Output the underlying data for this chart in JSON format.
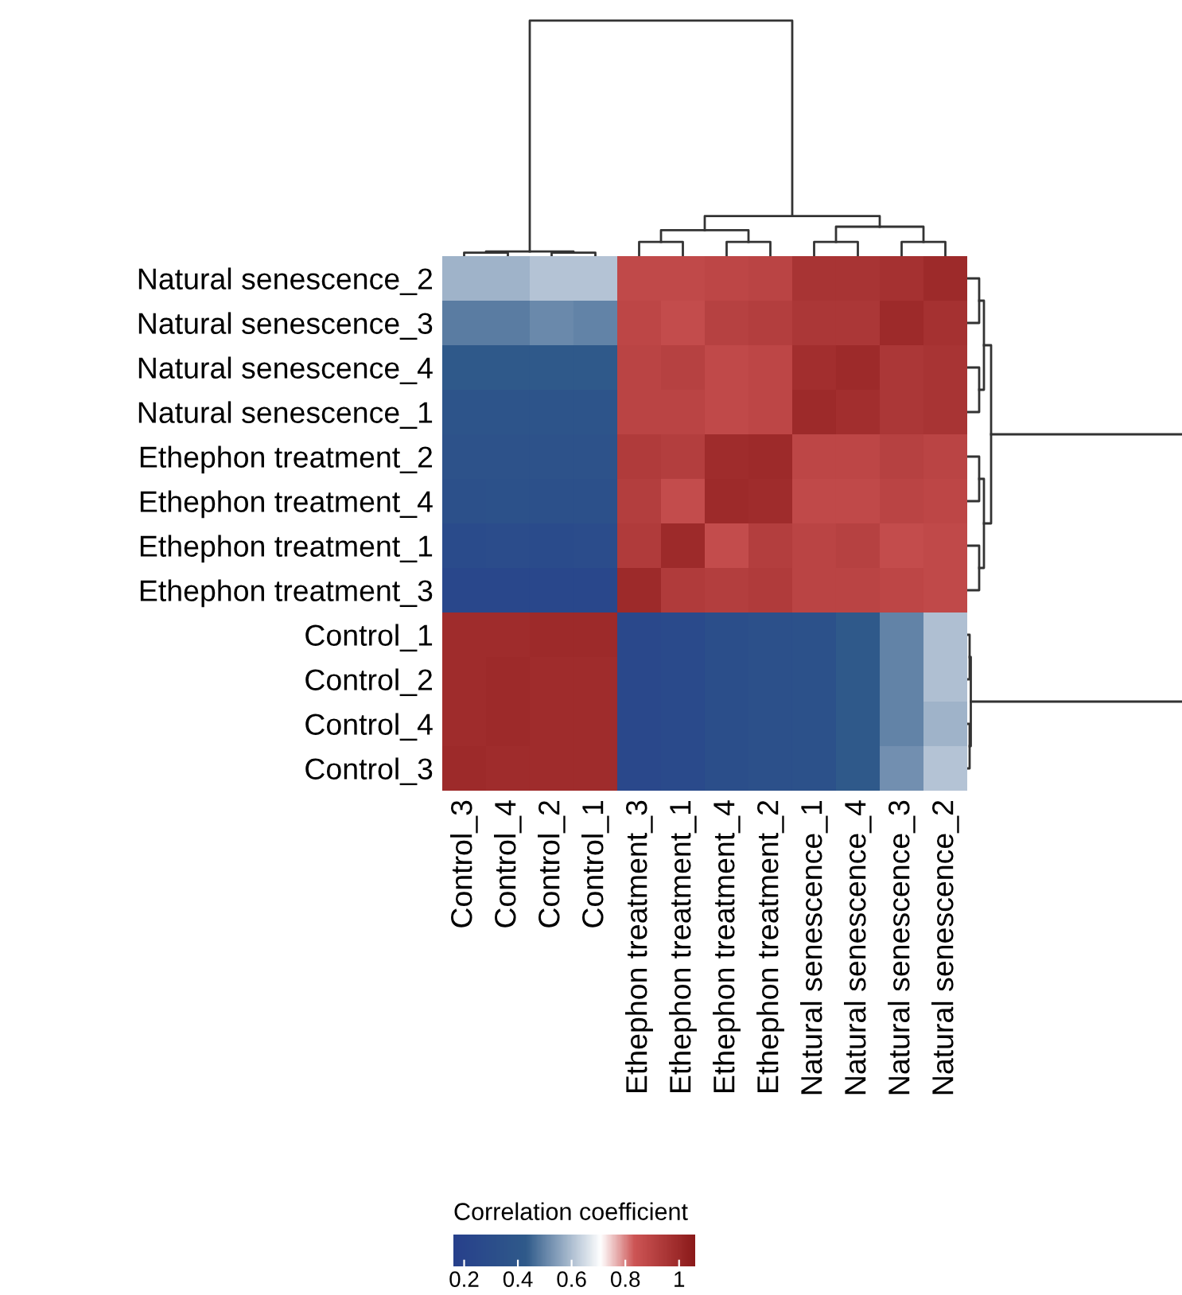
{
  "chart_data": {
    "type": "heatmap",
    "clabel": "Correlation coefficient",
    "categories": [
      "Control_3",
      "Control_4",
      "Control_2",
      "Control_1",
      "Ethephon treatment_3",
      "Ethephon treatment_1",
      "Ethephon treatment_4",
      "Ethephon treatment_2",
      "Natural senescence_1",
      "Natural senescence_4",
      "Natural senescence_3",
      "Natural senescence_2"
    ],
    "y_categories": [
      "Natural senescence_2",
      "Natural senescence_3",
      "Natural senescence_4",
      "Natural senescence_1",
      "Ethephon treatment_2",
      "Ethephon treatment_4",
      "Ethephon treatment_1",
      "Ethephon treatment_3",
      "Control_1",
      "Control_2",
      "Control_4",
      "Control_3"
    ],
    "cells": [
      [
        0.58,
        0.58,
        0.61,
        0.61,
        0.88,
        0.88,
        0.89,
        0.9,
        0.96,
        0.96,
        0.97,
        1
      ],
      [
        0.49,
        0.49,
        0.51,
        0.5,
        0.89,
        0.87,
        0.91,
        0.92,
        0.95,
        0.95,
        1,
        0.97
      ],
      [
        0.42,
        0.42,
        0.42,
        0.42,
        0.9,
        0.91,
        0.88,
        0.89,
        0.98,
        1,
        0.95,
        0.96
      ],
      [
        0.37,
        0.37,
        0.37,
        0.37,
        0.9,
        0.9,
        0.88,
        0.89,
        1,
        0.98,
        0.95,
        0.96
      ],
      [
        0.35,
        0.35,
        0.35,
        0.35,
        0.93,
        0.92,
        0.99,
        1,
        0.89,
        0.89,
        0.91,
        0.9
      ],
      [
        0.33,
        0.34,
        0.33,
        0.33,
        0.92,
        0.87,
        1,
        0.99,
        0.88,
        0.88,
        0.9,
        0.89
      ],
      [
        0.27,
        0.28,
        0.27,
        0.28,
        0.93,
        1,
        0.87,
        0.92,
        0.9,
        0.91,
        0.87,
        0.88
      ],
      [
        0.24,
        0.24,
        0.24,
        0.24,
        1,
        0.93,
        0.92,
        0.93,
        0.9,
        0.9,
        0.89,
        0.88
      ],
      [
        0.99,
        0.99,
        1,
        1,
        0.25,
        0.26,
        0.31,
        0.33,
        0.34,
        0.42,
        0.5,
        0.6
      ],
      [
        0.99,
        1,
        0.99,
        0.99,
        0.25,
        0.26,
        0.31,
        0.33,
        0.34,
        0.42,
        0.5,
        0.6
      ],
      [
        0.99,
        1,
        0.99,
        0.99,
        0.25,
        0.26,
        0.31,
        0.33,
        0.34,
        0.42,
        0.5,
        0.58
      ],
      [
        1,
        0.99,
        0.99,
        0.99,
        0.25,
        0.26,
        0.31,
        0.33,
        0.34,
        0.42,
        0.52,
        0.61
      ]
    ],
    "clim": [
      0.16,
      1.06
    ],
    "cticks": [
      0.2,
      0.4,
      0.6,
      0.8,
      1
    ]
  }
}
